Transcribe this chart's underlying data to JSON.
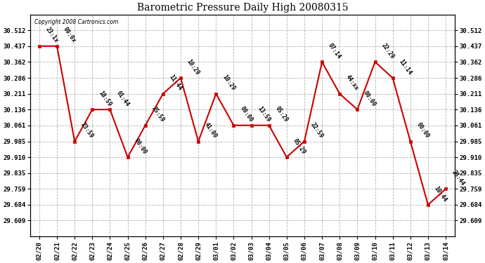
{
  "title": "Barometric Pressure Daily High 20080315",
  "copyright_text": "Copyright 2008 Cartronics.com",
  "dates": [
    "02/20",
    "02/21",
    "02/22",
    "02/23",
    "02/24",
    "02/25",
    "02/26",
    "02/27",
    "02/28",
    "02/29",
    "03/01",
    "03/02",
    "03/03",
    "03/04",
    "03/05",
    "03/06",
    "03/07",
    "03/08",
    "03/09",
    "03/10",
    "03/11",
    "03/12",
    "03/13",
    "03/14"
  ],
  "values": [
    30.437,
    30.437,
    29.985,
    30.136,
    30.136,
    29.91,
    30.061,
    30.211,
    30.286,
    29.985,
    30.211,
    30.061,
    30.061,
    30.061,
    29.91,
    29.985,
    30.362,
    30.211,
    30.136,
    30.362,
    30.286,
    29.985,
    29.684,
    29.759
  ],
  "time_labels": [
    "23:1x",
    "00:0x",
    "23:59",
    "18:59",
    "01:44",
    "00:00",
    "25:59",
    "11:44",
    "10:29",
    "41:00",
    "10:29",
    "00:00",
    "13:59",
    "05:29",
    "05:29",
    "22:59",
    "07:14",
    "44:xx",
    "00:00",
    "22:29",
    "11:14",
    "00:00",
    "10:44",
    "23:44"
  ],
  "line_color": "#cc0000",
  "marker_color": "#cc0000",
  "bg_color": "#ffffff",
  "grid_color": "#aaaaaa",
  "yticks": [
    29.609,
    29.684,
    29.759,
    29.835,
    29.91,
    29.985,
    30.061,
    30.136,
    30.211,
    30.286,
    30.362,
    30.437,
    30.512
  ],
  "ylim_min": 29.534,
  "ylim_max": 30.587,
  "figwidth": 6.9,
  "figheight": 3.75,
  "dpi": 100
}
